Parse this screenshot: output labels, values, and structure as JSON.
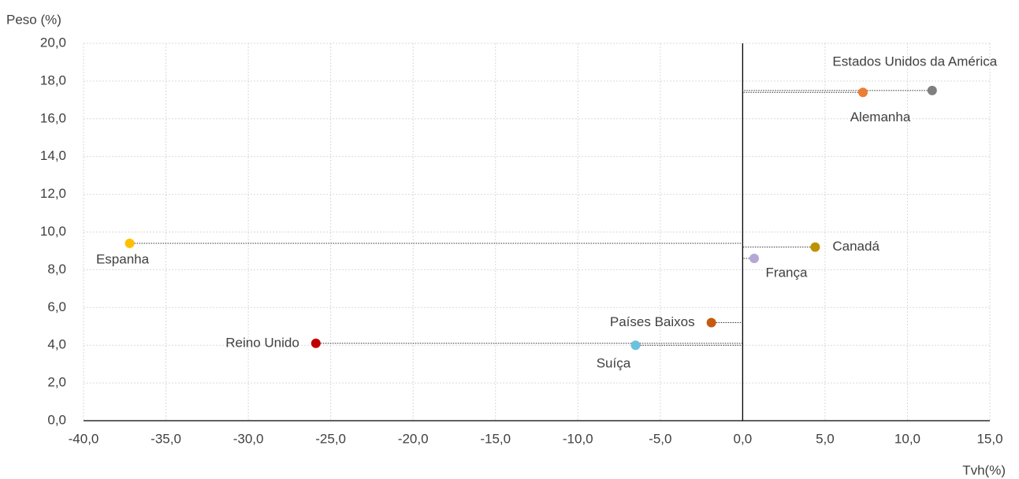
{
  "chart_data": {
    "type": "scatter",
    "x_label": "Tvh(%)",
    "y_label": "Peso (%)",
    "xlim": [
      -40,
      15
    ],
    "ylim": [
      0,
      20
    ],
    "xticks": [
      {
        "value": -40,
        "label": "-40,0"
      },
      {
        "value": -35,
        "label": "-35,0"
      },
      {
        "value": -30,
        "label": "-30,0"
      },
      {
        "value": -25,
        "label": "-25,0"
      },
      {
        "value": -20,
        "label": "-20,0"
      },
      {
        "value": -15,
        "label": "-15,0"
      },
      {
        "value": -10,
        "label": "-10,0"
      },
      {
        "value": -5,
        "label": "-5,0"
      },
      {
        "value": 0,
        "label": "0,0"
      },
      {
        "value": 5,
        "label": "5,0"
      },
      {
        "value": 10,
        "label": "10,0"
      },
      {
        "value": 15,
        "label": "15,0"
      }
    ],
    "yticks": [
      {
        "value": 0,
        "label": "0,0"
      },
      {
        "value": 2,
        "label": "2,0"
      },
      {
        "value": 4,
        "label": "4,0"
      },
      {
        "value": 6,
        "label": "6,0"
      },
      {
        "value": 8,
        "label": "8,0"
      },
      {
        "value": 10,
        "label": "10,0"
      },
      {
        "value": 12,
        "label": "12,0"
      },
      {
        "value": 14,
        "label": "14,0"
      },
      {
        "value": 16,
        "label": "16,0"
      },
      {
        "value": 18,
        "label": "18,0"
      },
      {
        "value": 20,
        "label": "20,0"
      }
    ],
    "grid": true,
    "series": [
      {
        "name": "Estados Unidos da América",
        "color": "#7f7f7f",
        "x": [
          11.5
        ],
        "values": [
          17.5
        ]
      },
      {
        "name": "Alemanha",
        "color": "#ed7d31",
        "x": [
          7.3
        ],
        "values": [
          17.4
        ]
      },
      {
        "name": "Espanha",
        "color": "#ffc000",
        "x": [
          -37.2
        ],
        "values": [
          9.4
        ]
      },
      {
        "name": "Canadá",
        "color": "#bf9000",
        "x": [
          4.4
        ],
        "values": [
          9.2
        ]
      },
      {
        "name": "França",
        "color": "#b4a7d6",
        "x": [
          0.7
        ],
        "values": [
          8.6
        ]
      },
      {
        "name": "Países Baixos",
        "color": "#c55a11",
        "x": [
          -1.9
        ],
        "values": [
          5.2
        ]
      },
      {
        "name": "Reino Unido",
        "color": "#c00000",
        "x": [
          -25.9
        ],
        "values": [
          4.1
        ]
      },
      {
        "name": "Suíça",
        "color": "#6cc1dc",
        "x": [
          -6.5
        ],
        "values": [
          4.0
        ]
      }
    ]
  }
}
